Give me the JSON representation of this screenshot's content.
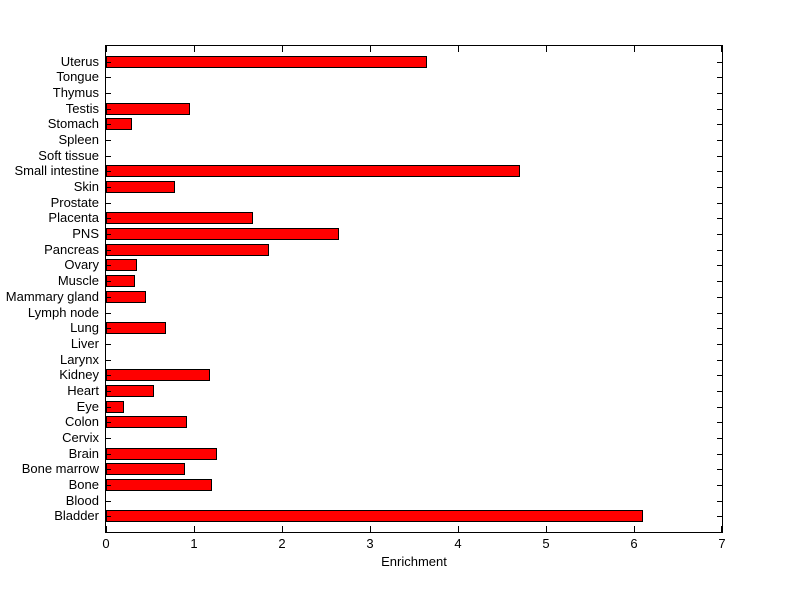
{
  "chart_data": {
    "type": "bar",
    "orientation": "horizontal",
    "title": "",
    "xlabel": "Enrichment",
    "ylabel": "",
    "xlim": [
      0,
      7
    ],
    "xticks": [
      0,
      1,
      2,
      3,
      4,
      5,
      6,
      7
    ],
    "grid": false,
    "legend": false,
    "bar_color": "#ff0000",
    "bar_edge_color": "#000000",
    "categories": [
      "Uterus",
      "Tongue",
      "Thymus",
      "Testis",
      "Stomach",
      "Spleen",
      "Soft tissue",
      "Small intestine",
      "Skin",
      "Prostate",
      "Placenta",
      "PNS",
      "Pancreas",
      "Ovary",
      "Muscle",
      "Mammary gland",
      "Lymph node",
      "Lung",
      "Liver",
      "Larynx",
      "Kidney",
      "Heart",
      "Eye",
      "Colon",
      "Cervix",
      "Brain",
      "Bone marrow",
      "Bone",
      "Blood",
      "Bladder"
    ],
    "values": [
      3.65,
      0,
      0,
      0.95,
      0.3,
      0,
      0,
      4.7,
      0.78,
      0,
      1.67,
      2.65,
      1.85,
      0.35,
      0.33,
      0.46,
      0,
      0.68,
      0,
      0,
      1.18,
      0.55,
      0.2,
      0.92,
      0,
      1.26,
      0.9,
      1.2,
      0,
      6.1
    ]
  }
}
